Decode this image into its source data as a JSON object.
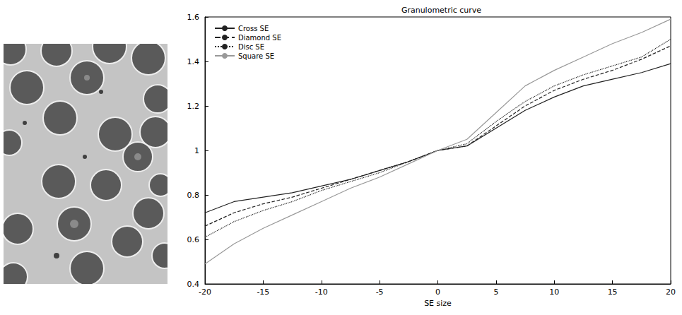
{
  "chart_data": {
    "type": "line",
    "title": "Granulometric curve",
    "xlabel": "SE size",
    "x": [
      -20,
      -17.5,
      -15,
      -12.5,
      -10,
      -7.5,
      -5,
      -2.5,
      0,
      2.5,
      5,
      7.5,
      10,
      12.5,
      15,
      17.5,
      20
    ],
    "series": [
      {
        "name": "Cross SE",
        "color": "#222222",
        "line_style": "solid",
        "values": [
          0.72,
          0.77,
          0.79,
          0.81,
          0.84,
          0.87,
          0.91,
          0.95,
          1.0,
          1.02,
          1.1,
          1.18,
          1.24,
          1.29,
          1.32,
          1.35,
          1.39
        ]
      },
      {
        "name": "Diamond SE",
        "color": "#222222",
        "line_style": "dashed",
        "values": [
          0.66,
          0.72,
          0.76,
          0.79,
          0.83,
          0.87,
          0.91,
          0.95,
          1.0,
          1.02,
          1.11,
          1.2,
          1.27,
          1.32,
          1.36,
          1.41,
          1.47
        ]
      },
      {
        "name": "Disc SE",
        "color": "#222222",
        "line_style": "dotted",
        "values": [
          0.61,
          0.68,
          0.73,
          0.77,
          0.82,
          0.86,
          0.9,
          0.95,
          1.0,
          1.03,
          1.13,
          1.22,
          1.29,
          1.34,
          1.38,
          1.42,
          1.5
        ]
      },
      {
        "name": "Square SE",
        "color": "#999999",
        "line_style": "solid",
        "values": [
          0.49,
          0.58,
          0.65,
          0.71,
          0.77,
          0.83,
          0.88,
          0.94,
          1.0,
          1.05,
          1.17,
          1.29,
          1.36,
          1.42,
          1.48,
          1.53,
          1.59
        ]
      }
    ],
    "xlim": [
      -20,
      20
    ],
    "xticks": [
      -20,
      -15,
      -10,
      -5,
      0,
      5,
      10,
      15,
      20
    ],
    "ylim": [
      0.4,
      1.6
    ],
    "yticks": [
      0.4,
      0.6,
      0.8,
      1,
      1.2,
      1.4,
      1.6
    ],
    "grid": false,
    "legend": "upper left",
    "marker": "none"
  }
}
